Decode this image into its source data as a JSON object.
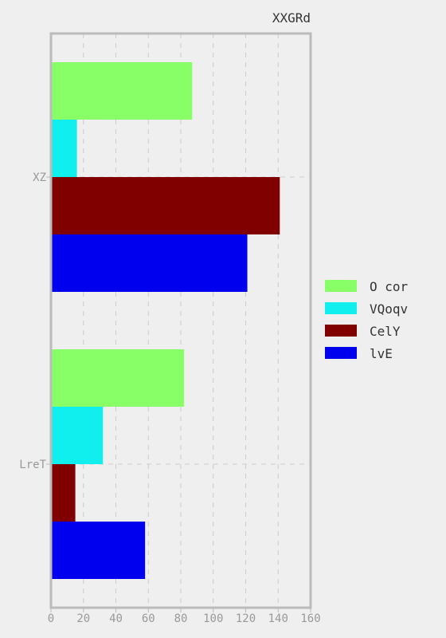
{
  "chart_data": {
    "type": "bar",
    "orientation": "horizontal",
    "title": "XXGRd",
    "categories": [
      "XZ",
      "LreT"
    ],
    "series": [
      {
        "name": "O cor",
        "color": "#88ff66",
        "values": [
          87,
          82
        ]
      },
      {
        "name": "VQoqv",
        "color": "#11eeee",
        "values": [
          16,
          32
        ]
      },
      {
        "name": "CelY",
        "color": "#800000",
        "values": [
          141,
          15
        ]
      },
      {
        "name": "lvE",
        "color": "#0000ee",
        "values": [
          121,
          58
        ]
      }
    ],
    "xlim": [
      0,
      160
    ],
    "xticks": [
      0,
      20,
      40,
      60,
      80,
      100,
      120,
      140,
      160
    ],
    "xlabel": "",
    "ylabel": "",
    "grid": true,
    "legend_position": "right"
  }
}
